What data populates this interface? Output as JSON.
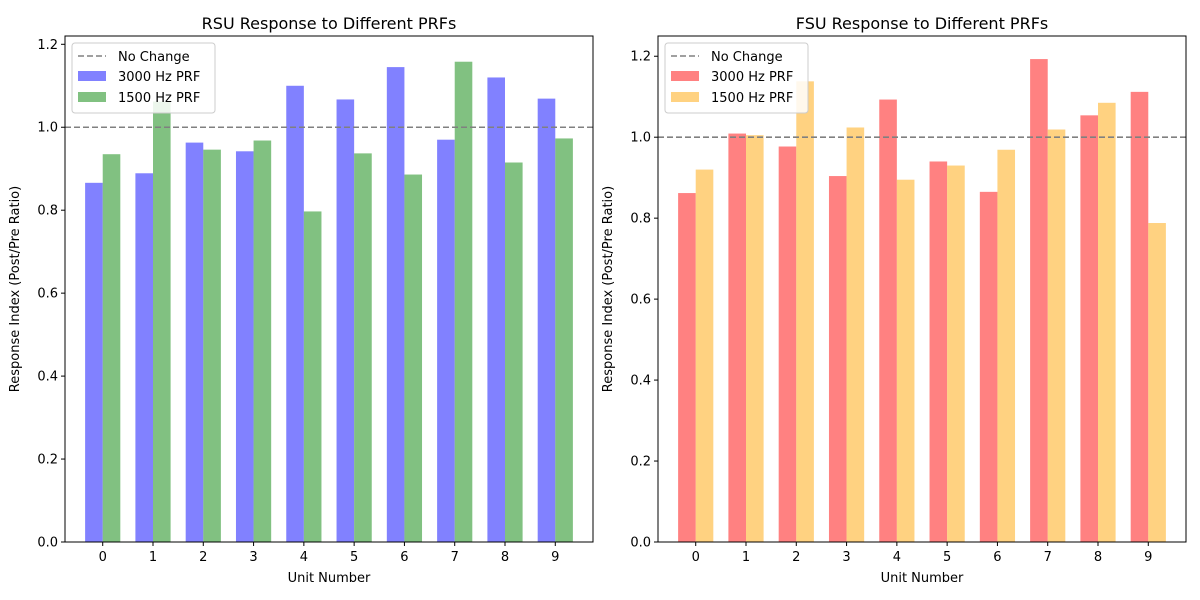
{
  "chart_data": [
    {
      "type": "bar",
      "title": "RSU Response to Different PRFs",
      "xlabel": "Unit Number",
      "ylabel": "Response Index (Post/Pre Ratio)",
      "categories": [
        "0",
        "1",
        "2",
        "3",
        "4",
        "5",
        "6",
        "7",
        "8",
        "9"
      ],
      "ylim": [
        0,
        1.22
      ],
      "yticks": [
        0.0,
        0.2,
        0.4,
        0.6,
        0.8,
        1.0,
        1.2
      ],
      "reference_line": {
        "name": "No Change",
        "value": 1.0,
        "color": "#808080",
        "style": "dashed"
      },
      "series": [
        {
          "name": "3000 Hz PRF",
          "color": "#4b4bff",
          "values": [
            0.866,
            0.889,
            0.963,
            0.942,
            1.1,
            1.067,
            1.145,
            0.97,
            1.12,
            1.069
          ]
        },
        {
          "name": "1500 Hz PRF",
          "color": "#4ca64c",
          "values": [
            0.935,
            1.062,
            0.946,
            0.968,
            0.797,
            0.937,
            0.886,
            1.158,
            0.915,
            0.973
          ]
        }
      ],
      "legend": "top-left",
      "grid": false
    },
    {
      "type": "bar",
      "title": "FSU Response to Different PRFs",
      "xlabel": "Unit Number",
      "ylabel": "Response Index (Post/Pre Ratio)",
      "categories": [
        "0",
        "1",
        "2",
        "3",
        "4",
        "5",
        "6",
        "7",
        "8",
        "9"
      ],
      "ylim": [
        0,
        1.25
      ],
      "yticks": [
        0.0,
        0.2,
        0.4,
        0.6,
        0.8,
        1.0,
        1.2
      ],
      "reference_line": {
        "name": "No Change",
        "value": 1.0,
        "color": "#808080",
        "style": "dashed"
      },
      "series": [
        {
          "name": "3000 Hz PRF",
          "color": "#ff4b4b",
          "values": [
            0.862,
            1.009,
            0.977,
            0.904,
            1.093,
            0.94,
            0.865,
            1.193,
            1.054,
            1.112
          ]
        },
        {
          "name": "1500 Hz PRF",
          "color": "#ffbf4b",
          "values": [
            0.92,
            1.005,
            1.138,
            1.024,
            0.895,
            0.93,
            0.969,
            1.019,
            1.085,
            0.788
          ]
        }
      ],
      "legend": "top-left",
      "grid": false
    }
  ]
}
